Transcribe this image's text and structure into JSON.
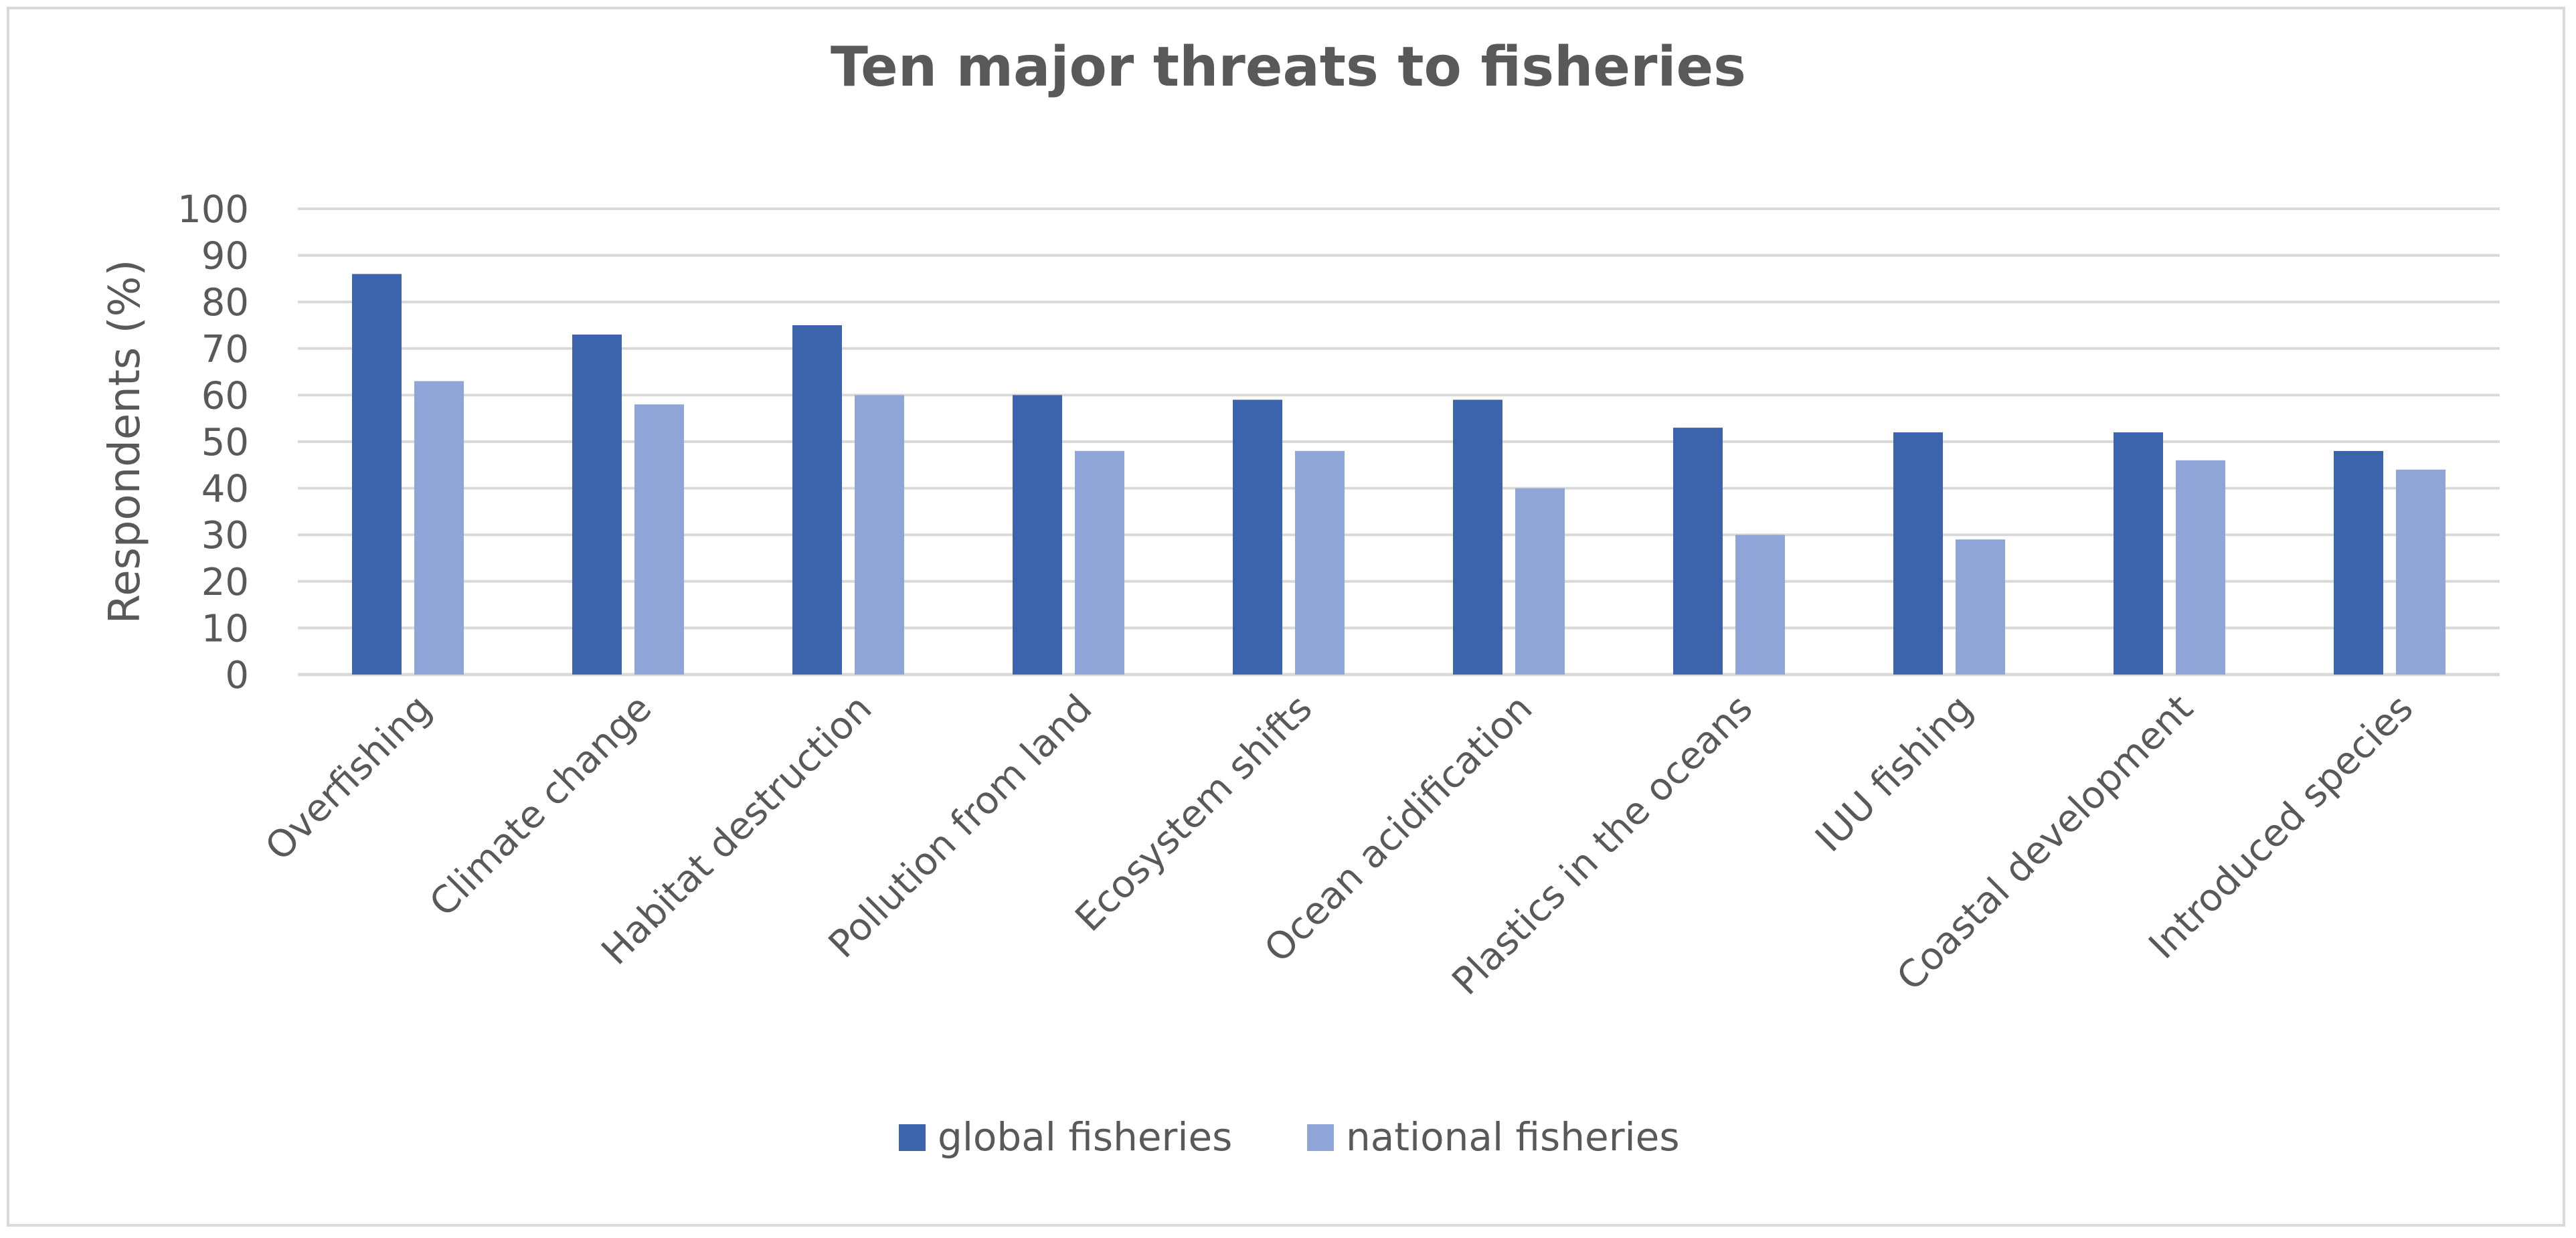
{
  "chart_data": {
    "type": "bar",
    "title": "Ten major threats to fisheries",
    "ylabel": "Respondents (%)",
    "xlabel": "",
    "ylim": [
      0,
      100
    ],
    "yticks": [
      "0",
      "10",
      "20",
      "30",
      "40",
      "50",
      "60",
      "70",
      "80",
      "90",
      "100"
    ],
    "grid": true,
    "legend_position": "bottom",
    "categories": [
      "Overfishing",
      "Climate change",
      "Habitat destruction",
      "Pollution from land",
      "Ecosystem shifts",
      "Ocean acidification",
      "Plastics in the oceans",
      "IUU fishing",
      "Coastal development",
      "Introduced species"
    ],
    "series": [
      {
        "name": "global fisheries",
        "color": "#3b64ad",
        "values": [
          86,
          73,
          75,
          60,
          59,
          59,
          53,
          52,
          52,
          48
        ]
      },
      {
        "name": "national fisheries",
        "color": "#8fa5d8",
        "values": [
          63,
          58,
          60,
          48,
          48,
          40,
          30,
          29,
          46,
          44
        ]
      }
    ],
    "colors": {
      "grid": "#d9d9d9",
      "text": "#595959",
      "frame": "#d9d9d9"
    }
  }
}
